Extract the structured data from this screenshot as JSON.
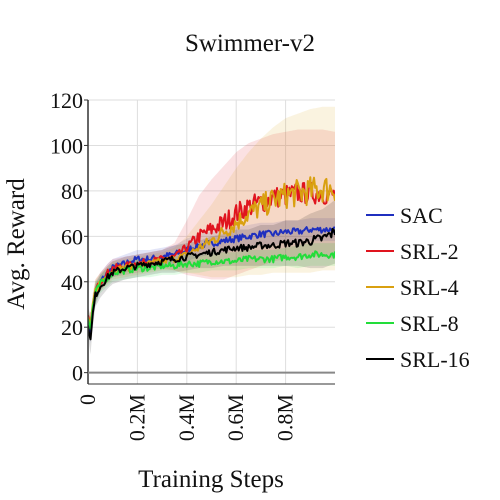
{
  "chart_data": {
    "type": "line",
    "title": "Swimmer-v2",
    "xlabel": "Training Steps",
    "ylabel": "Avg. Reward",
    "xlim": [
      0,
      1.0
    ],
    "ylim": [
      -5,
      120
    ],
    "x_ticks": [
      0,
      0.2,
      0.4,
      0.6,
      0.8
    ],
    "x_tick_labels": [
      "0",
      "0.2M",
      "0.4M",
      "0.6M",
      "0.8M"
    ],
    "y_ticks": [
      0,
      20,
      40,
      60,
      80,
      100,
      120
    ],
    "y_tick_labels": [
      "0",
      "20",
      "40",
      "60",
      "80",
      "100",
      "120"
    ],
    "grid": true,
    "legend_position": "right",
    "x": [
      0,
      0.01,
      0.02,
      0.03,
      0.05,
      0.08,
      0.1,
      0.15,
      0.2,
      0.25,
      0.3,
      0.35,
      0.4,
      0.45,
      0.5,
      0.55,
      0.6,
      0.65,
      0.7,
      0.75,
      0.8,
      0.85,
      0.9,
      0.95,
      1.0
    ],
    "series": [
      {
        "name": "SAC",
        "color": "#1f2fbf",
        "values": [
          25,
          18,
          28,
          35,
          40,
          44,
          46,
          48,
          50,
          50,
          51,
          52,
          54,
          56,
          57,
          58,
          59,
          60,
          61,
          61,
          62,
          62,
          63,
          63,
          63
        ],
        "band": [
          6,
          5,
          5,
          5,
          4,
          4,
          4,
          4,
          4,
          4,
          4,
          4,
          5,
          5,
          5,
          5,
          5,
          5,
          5,
          5,
          5,
          5,
          5,
          5,
          5
        ]
      },
      {
        "name": "SRL-2",
        "color": "#e0141e",
        "values": [
          24,
          20,
          30,
          36,
          40,
          44,
          46,
          47,
          48,
          49,
          50,
          51,
          55,
          60,
          63,
          66,
          70,
          73,
          75,
          77,
          78,
          79,
          79,
          79,
          78
        ],
        "band": [
          5,
          5,
          5,
          5,
          4,
          4,
          4,
          4,
          4,
          4,
          4,
          6,
          12,
          18,
          22,
          25,
          27,
          28,
          28,
          28,
          28,
          28,
          28,
          28,
          28
        ]
      },
      {
        "name": "SRL-4",
        "color": "#d9a010",
        "values": [
          24,
          19,
          30,
          36,
          40,
          43,
          45,
          46,
          47,
          48,
          49,
          50,
          52,
          55,
          58,
          62,
          66,
          70,
          73,
          76,
          78,
          79,
          80,
          81,
          81
        ],
        "band": [
          5,
          5,
          5,
          5,
          4,
          4,
          4,
          4,
          4,
          4,
          4,
          5,
          8,
          12,
          16,
          20,
          24,
          27,
          30,
          32,
          34,
          35,
          36,
          36,
          36
        ]
      },
      {
        "name": "SRL-8",
        "color": "#22dd3a",
        "values": [
          24,
          19,
          29,
          35,
          39,
          42,
          44,
          45,
          46,
          46,
          47,
          47,
          48,
          48,
          49,
          49,
          49,
          50,
          50,
          50,
          51,
          51,
          52,
          52,
          52
        ],
        "band": [
          5,
          5,
          5,
          5,
          4,
          4,
          4,
          4,
          4,
          4,
          4,
          4,
          4,
          4,
          4,
          4,
          4,
          4,
          4,
          4,
          4,
          5,
          5,
          5,
          5
        ]
      },
      {
        "name": "SRL-16",
        "color": "#000000",
        "values": [
          22,
          14,
          26,
          34,
          38,
          42,
          44,
          46,
          47,
          48,
          49,
          50,
          51,
          52,
          53,
          54,
          55,
          55,
          56,
          56,
          57,
          57,
          58,
          59,
          62
        ],
        "band": [
          6,
          6,
          6,
          5,
          5,
          5,
          5,
          5,
          5,
          5,
          5,
          6,
          6,
          6,
          7,
          7,
          8,
          8,
          9,
          9,
          10,
          10,
          12,
          13,
          14
        ]
      }
    ]
  }
}
